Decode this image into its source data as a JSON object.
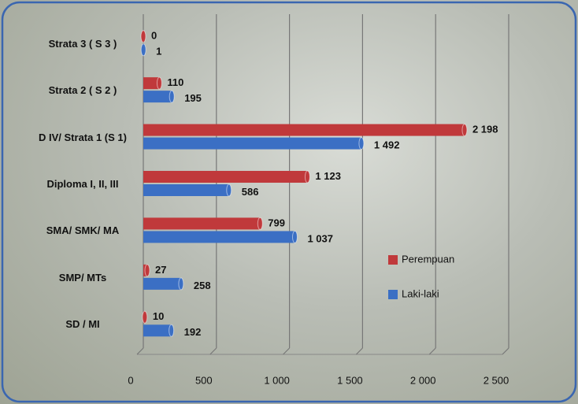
{
  "chart_data": {
    "type": "hbar",
    "categories": [
      "Strata 3 ( S 3 )",
      "Strata 2 ( S 2 )",
      "D IV/ Strata 1 (S 1)",
      "Diploma I, II, III",
      "SMA/ SMK/ MA",
      "SMP/ MTs",
      "SD / MI"
    ],
    "series": [
      {
        "name": "Perempuan",
        "color": "#c0393b",
        "values": [
          0,
          110,
          2198,
          1123,
          799,
          27,
          10
        ],
        "value_labels": [
          "0",
          "110",
          "2 198",
          "1 123",
          "799",
          "27",
          "10"
        ]
      },
      {
        "name": "Laki-laki",
        "color": "#3b6fc4",
        "values": [
          1,
          195,
          1492,
          586,
          1037,
          258,
          192
        ],
        "value_labels": [
          "1",
          "195",
          "1 492",
          "586",
          "1 037",
          "258",
          "192"
        ]
      }
    ],
    "xlim": [
      0,
      2500
    ],
    "xticks": [
      0,
      500,
      {
        "value": 1000,
        "label": "1 000"
      },
      {
        "value": 1500,
        "label": "1 500"
      },
      {
        "value": 2000,
        "label": "2 000"
      },
      {
        "value": 2500,
        "label": "2 500"
      }
    ],
    "grid": true,
    "legend": "right"
  }
}
